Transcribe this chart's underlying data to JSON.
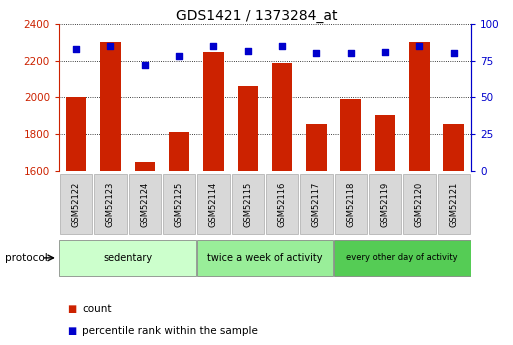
{
  "title": "GDS1421 / 1373284_at",
  "samples": [
    "GSM52122",
    "GSM52123",
    "GSM52124",
    "GSM52125",
    "GSM52114",
    "GSM52115",
    "GSM52116",
    "GSM52117",
    "GSM52118",
    "GSM52119",
    "GSM52120",
    "GSM52121"
  ],
  "counts": [
    2000,
    2305,
    1650,
    1810,
    2250,
    2060,
    2190,
    1855,
    1990,
    1905,
    2305,
    1855
  ],
  "percentiles": [
    83,
    85,
    72,
    78,
    85,
    82,
    85,
    80,
    80,
    81,
    85,
    80
  ],
  "ylim_left": [
    1600,
    2400
  ],
  "ylim_right": [
    0,
    100
  ],
  "yticks_left": [
    1600,
    1800,
    2000,
    2200,
    2400
  ],
  "yticks_right": [
    0,
    25,
    50,
    75,
    100
  ],
  "groups": [
    {
      "label": "sedentary",
      "start": 0,
      "end": 4
    },
    {
      "label": "twice a week of activity",
      "start": 4,
      "end": 8
    },
    {
      "label": "every other day of activity",
      "start": 8,
      "end": 12
    }
  ],
  "group_colors": [
    "#ccffcc",
    "#99ee99",
    "#55cc55"
  ],
  "bar_color": "#cc2200",
  "dot_color": "#0000cc",
  "left_axis_color": "#cc2200",
  "right_axis_color": "#0000cc",
  "bg_color": "#ffffff",
  "legend_count_label": "count",
  "legend_pct_label": "percentile rank within the sample",
  "protocol_label": "protocol"
}
